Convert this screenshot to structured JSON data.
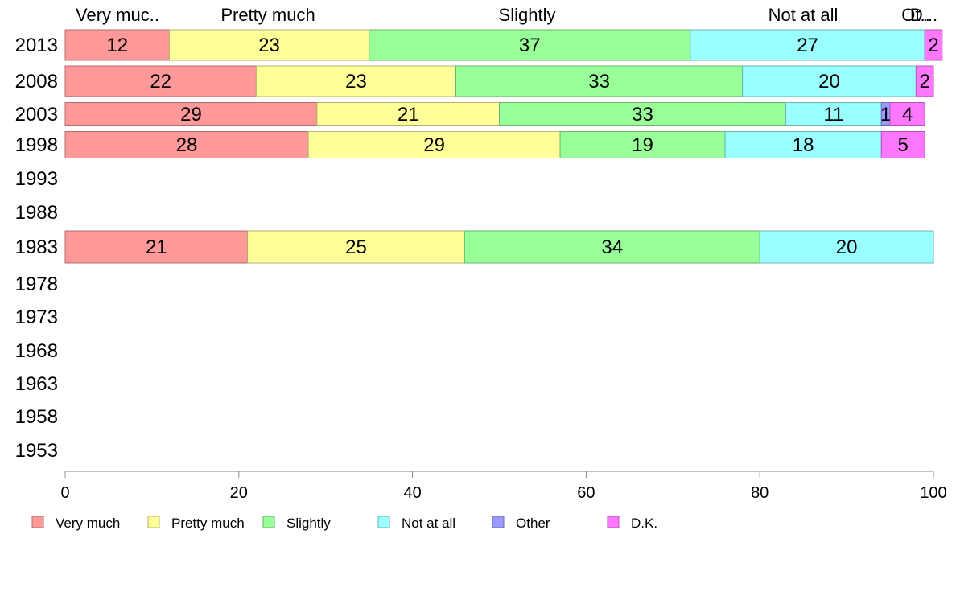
{
  "chart_data": {
    "type": "bar",
    "orientation": "horizontal",
    "stacked": true,
    "title": "",
    "xlabel": "",
    "ylabel": "",
    "xlim": [
      0,
      100
    ],
    "x_ticks": [
      "0",
      "20",
      "40",
      "60",
      "80",
      "100"
    ],
    "grid": false,
    "legend_position": "bottom",
    "categories": [
      "2013",
      "2008",
      "2003",
      "1998",
      "1993",
      "1988",
      "1983",
      "1978",
      "1973",
      "1968",
      "1963",
      "1958",
      "1953"
    ],
    "top_category_labels": [
      "Very muc..",
      "Pretty much",
      "Slightly",
      "Not at all",
      "Ot..",
      "D..."
    ],
    "series": [
      {
        "name": "Very much",
        "color": "#ff9999",
        "values": [
          12,
          22,
          29,
          28,
          null,
          null,
          21,
          null,
          null,
          null,
          null,
          null,
          null
        ]
      },
      {
        "name": "Pretty much",
        "color": "#ffff99",
        "values": [
          23,
          23,
          21,
          29,
          null,
          null,
          25,
          null,
          null,
          null,
          null,
          null,
          null
        ]
      },
      {
        "name": "Slightly",
        "color": "#99ff99",
        "values": [
          37,
          33,
          33,
          19,
          null,
          null,
          34,
          null,
          null,
          null,
          null,
          null,
          null
        ]
      },
      {
        "name": "Not at all",
        "color": "#99ffff",
        "values": [
          27,
          20,
          11,
          18,
          null,
          null,
          20,
          null,
          null,
          null,
          null,
          null,
          null
        ]
      },
      {
        "name": "Other",
        "color": "#9999ff",
        "values": [
          0,
          0,
          1,
          0,
          null,
          null,
          0,
          null,
          null,
          null,
          null,
          null,
          null
        ]
      },
      {
        "name": "D.K.",
        "color": "#ff77ff",
        "values": [
          2,
          2,
          4,
          5,
          null,
          null,
          0,
          null,
          null,
          null,
          null,
          null,
          null
        ]
      }
    ]
  }
}
